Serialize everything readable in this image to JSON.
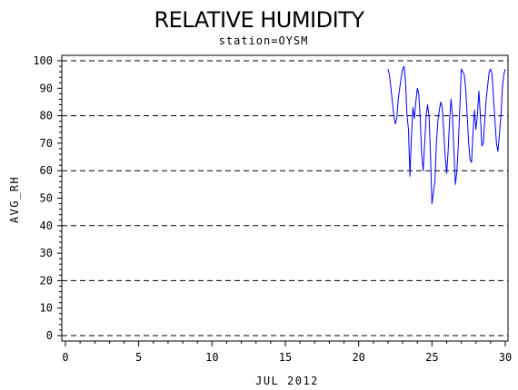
{
  "chart_data": {
    "type": "line",
    "title": "RELATIVE HUMIDITY",
    "subtitle": "station=OYSM",
    "xlabel": "JUL 2012",
    "ylabel": "AVG_RH",
    "xlim": [
      0,
      30
    ],
    "ylim": [
      0,
      100
    ],
    "x_ticks": [
      0,
      5,
      10,
      15,
      20,
      25,
      30
    ],
    "y_ticks": [
      0,
      10,
      20,
      30,
      40,
      50,
      60,
      70,
      80,
      90,
      100
    ],
    "dashed_gridlines_y": [
      0,
      20,
      40,
      60,
      80,
      100
    ],
    "series_color": "#0000ff",
    "series": [
      {
        "x": [
          22.0,
          22.1,
          22.2,
          22.3,
          22.4,
          22.5,
          22.6,
          22.7,
          22.8,
          22.9,
          23.0,
          23.1,
          23.2,
          23.3,
          23.4,
          23.5,
          23.6,
          23.7,
          23.8,
          23.9,
          24.0,
          24.1,
          24.2,
          24.3,
          24.4,
          24.5,
          24.6,
          24.7,
          24.8,
          24.9,
          25.0,
          25.1,
          25.2,
          25.3,
          25.4,
          25.5,
          25.6,
          25.7,
          25.8,
          25.9,
          26.0,
          26.1,
          26.2,
          26.3,
          26.4,
          26.5,
          26.6,
          26.7,
          26.8,
          26.9,
          27.0,
          27.1,
          27.2,
          27.3,
          27.4,
          27.5,
          27.6,
          27.7,
          27.8,
          27.9,
          28.0,
          28.1,
          28.2,
          28.3,
          28.4,
          28.5,
          28.6,
          28.7,
          28.8,
          28.9,
          29.0,
          29.1,
          29.2,
          29.3,
          29.4,
          29.5,
          29.6,
          29.7,
          29.8,
          29.9,
          30.0
        ],
        "y": [
          97,
          95,
          90,
          85,
          80,
          77,
          79,
          86,
          90,
          94,
          97,
          98,
          92,
          80,
          75,
          58,
          72,
          83,
          79,
          85,
          90,
          88,
          79,
          66,
          60,
          70,
          80,
          84,
          80,
          66,
          48,
          52,
          56,
          70,
          78,
          82,
          85,
          83,
          75,
          65,
          59,
          67,
          78,
          86,
          80,
          67,
          55,
          60,
          70,
          83,
          97,
          96,
          95,
          90,
          80,
          70,
          64,
          63,
          74,
          82,
          75,
          80,
          89,
          80,
          69,
          70,
          78,
          86,
          91,
          96,
          97,
          95,
          86,
          78,
          70,
          67,
          73,
          80,
          90,
          95,
          97
        ]
      }
    ]
  }
}
